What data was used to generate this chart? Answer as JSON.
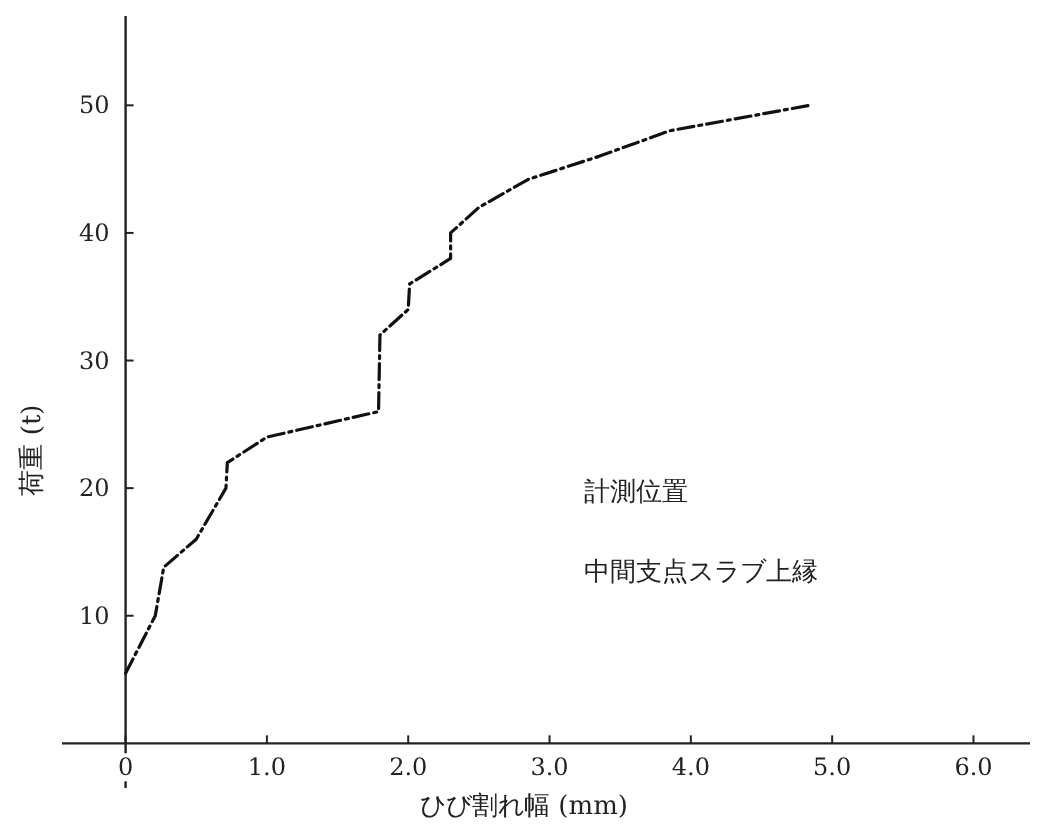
{
  "chart_data": {
    "type": "line",
    "xlabel": "ひび割れ幅 (mm)",
    "ylabel": "荷重 (t)",
    "annotations": [
      "計測位置",
      "中間支点スラブ上縁"
    ],
    "x": [
      0,
      0.21,
      0.27,
      0.5,
      0.71,
      0.72,
      1.0,
      1.79,
      1.8,
      2.0,
      2.01,
      2.3,
      2.3,
      2.5,
      2.85,
      3.35,
      3.85,
      4.84
    ],
    "values": [
      5.5,
      10,
      13.8,
      16,
      20,
      22,
      24,
      26,
      32,
      34,
      36,
      38,
      40,
      42,
      44.2,
      46,
      48,
      50
    ],
    "color": "#111111",
    "line_style": "dashed",
    "xlim": [
      -0.45,
      6.4
    ],
    "ylim": [
      -3.5,
      57
    ],
    "xticks": [
      0,
      {
        "value": 1,
        "label": "1.0"
      },
      {
        "value": 2,
        "label": "2.0"
      },
      {
        "value": 3,
        "label": "3.0"
      },
      {
        "value": 4,
        "label": "4.0"
      },
      {
        "value": 5,
        "label": "5.0"
      },
      {
        "value": 6,
        "label": "6.0"
      }
    ],
    "yticks": [
      10,
      20,
      30,
      40,
      50
    ]
  }
}
